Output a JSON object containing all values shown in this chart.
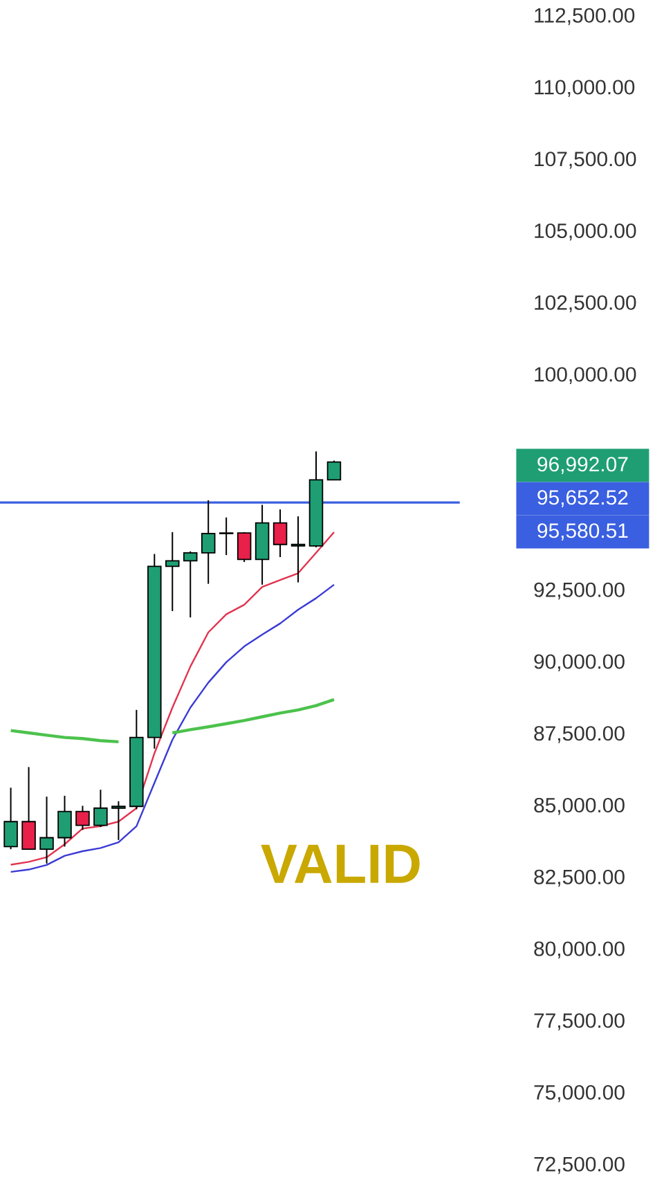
{
  "chart_data": {
    "type": "candlestick",
    "categories": [
      null,
      null,
      null,
      null,
      null,
      null,
      null,
      null,
      null,
      null,
      null,
      null,
      null,
      null,
      null,
      null,
      null,
      null,
      null
    ],
    "ohlc": [
      [
        83600,
        85650,
        83510,
        84470
      ],
      [
        84470,
        86370,
        83500,
        83510
      ],
      [
        83510,
        85340,
        83010,
        83910
      ],
      [
        83910,
        85370,
        83600,
        84820
      ],
      [
        84820,
        85020,
        84180,
        84340
      ],
      [
        84340,
        85580,
        84280,
        84940
      ],
      [
        84940,
        85180,
        83830,
        85000
      ],
      [
        85000,
        88360,
        84900,
        87400
      ],
      [
        87400,
        93790,
        87010,
        93360
      ],
      [
        93360,
        94550,
        91800,
        93550
      ],
      [
        93550,
        93880,
        91580,
        93830
      ],
      [
        93830,
        95660,
        92750,
        94500
      ],
      [
        94500,
        95060,
        93750,
        94520
      ],
      [
        94520,
        94550,
        93510,
        93600
      ],
      [
        93600,
        95500,
        92720,
        94870
      ],
      [
        94870,
        95340,
        93680,
        94120
      ],
      [
        94120,
        95100,
        92800,
        94070
      ],
      [
        94070,
        97360,
        94020,
        96370
      ],
      [
        96370,
        97040,
        96370,
        96990
      ]
    ],
    "colors": [
      "#1f9e74",
      "#e8204a",
      "#1f9e74",
      "#1f9e74",
      "#e8204a",
      "#1f9e74",
      "#1f9e74",
      "#1f9e74",
      "#1f9e74",
      "#1f9e74",
      "#1f9e74",
      "#1f9e74",
      "#1f9e74",
      "#e8204a",
      "#1f9e74",
      "#e8204a",
      "#1f9e74",
      "#1f9e74",
      "#1f9e74"
    ],
    "series": [
      {
        "type": "line",
        "color": "#e0344f",
        "values": [
          82970,
          83070,
          83230,
          83680,
          84230,
          84310,
          84470,
          84940,
          86850,
          88440,
          89870,
          91060,
          91690,
          92020,
          92640,
          92880,
          93120,
          93830,
          94550
        ]
      },
      {
        "type": "line",
        "color": "#3a3ad6",
        "values": [
          82720,
          82800,
          82960,
          83280,
          83440,
          83550,
          83750,
          84310,
          85820,
          87320,
          88440,
          89310,
          90020,
          90570,
          90980,
          91370,
          91850,
          92250,
          92720
        ]
      },
      {
        "type": "line",
        "color": "#4cc24c",
        "values": [
          87640,
          87560,
          87480,
          87400,
          87360,
          87290,
          87250,
          null,
          null,
          87560,
          87670,
          87770,
          87880,
          87990,
          88120,
          88250,
          88360,
          88510,
          88720
        ]
      }
    ],
    "ylim": [
      72500,
      112500
    ],
    "yticks": [
      {
        "value": 72500,
        "label": "72,500.00"
      },
      {
        "value": 75000,
        "label": "75,000.00"
      },
      {
        "value": 77500,
        "label": "77,500.00"
      },
      {
        "value": 80000,
        "label": "80,000.00"
      },
      {
        "value": 82500,
        "label": "82,500.00"
      },
      {
        "value": 85000,
        "label": "85,000.00"
      },
      {
        "value": 87500,
        "label": "87,500.00"
      },
      {
        "value": 90000,
        "label": "90,000.00"
      },
      {
        "value": 92500,
        "label": "92,500.00"
      },
      {
        "value": 100000,
        "label": "100,000.00"
      },
      {
        "value": 102500,
        "label": "102,500.00"
      },
      {
        "value": 105000,
        "label": "105,000.00"
      },
      {
        "value": 107500,
        "label": "107,500.00"
      },
      {
        "value": 110000,
        "label": "110,000.00"
      },
      {
        "value": 112500,
        "label": "112,500.00"
      }
    ],
    "tick_labels": "y",
    "ref_lines": [
      {
        "axis": "y",
        "value": 95580,
        "color": "#3a5fe0"
      }
    ],
    "annotations": [
      "96,992.07",
      "95,652.52",
      "95,580.51",
      "VALID"
    ]
  }
}
